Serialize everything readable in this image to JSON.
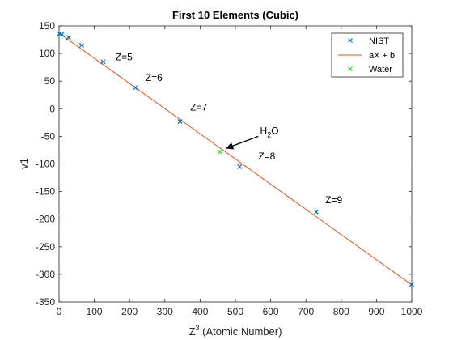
{
  "chart_data": {
    "type": "scatter",
    "title": "First 10 Elements (Cubic)",
    "xlabel_base": "Z",
    "xlabel_exp": "3",
    "xlabel_rest": " (Atomic Number)",
    "ylabel": "v1",
    "xlim": [
      0,
      1000
    ],
    "ylim": [
      -350,
      150
    ],
    "xticks": [
      0,
      100,
      200,
      300,
      400,
      500,
      600,
      700,
      800,
      900,
      1000
    ],
    "yticks": [
      150,
      100,
      50,
      0,
      -50,
      -100,
      -150,
      -200,
      -250,
      -300,
      -350
    ],
    "grid": false,
    "legend_position": "top-right",
    "colors": {
      "nist": "#0072BD",
      "fit": "#D95319",
      "water": "#22DD22"
    },
    "series": [
      {
        "name": "NIST",
        "kind": "marker-x",
        "points": [
          [
            1,
            136
          ],
          [
            8,
            135
          ],
          [
            27,
            129
          ],
          [
            64,
            115
          ],
          [
            125,
            85
          ],
          [
            216,
            38
          ],
          [
            343,
            -23
          ],
          [
            512,
            -105
          ],
          [
            729,
            -187
          ],
          [
            1000,
            -318
          ]
        ]
      },
      {
        "name": "aX + b",
        "kind": "line",
        "points": [
          [
            0,
            137
          ],
          [
            1000,
            -319
          ]
        ]
      },
      {
        "name": "Water",
        "kind": "marker-x",
        "points": [
          [
            456,
            -78
          ]
        ]
      }
    ],
    "annotations": [
      {
        "text": "Z=5",
        "x": 160,
        "y": 88
      },
      {
        "text": "Z=6",
        "x": 245,
        "y": 50
      },
      {
        "text": "Z=7",
        "x": 372,
        "y": -3
      },
      {
        "text": "Z=8",
        "x": 565,
        "y": -92
      },
      {
        "text": "Z=9",
        "x": 755,
        "y": -171
      }
    ],
    "h2o_label": {
      "base": "H",
      "sub": "2",
      "rest": "O",
      "x": 570,
      "y": -46
    },
    "h2o_arrow": {
      "from": [
        565,
        -50
      ],
      "to": [
        473,
        -72
      ]
    }
  }
}
